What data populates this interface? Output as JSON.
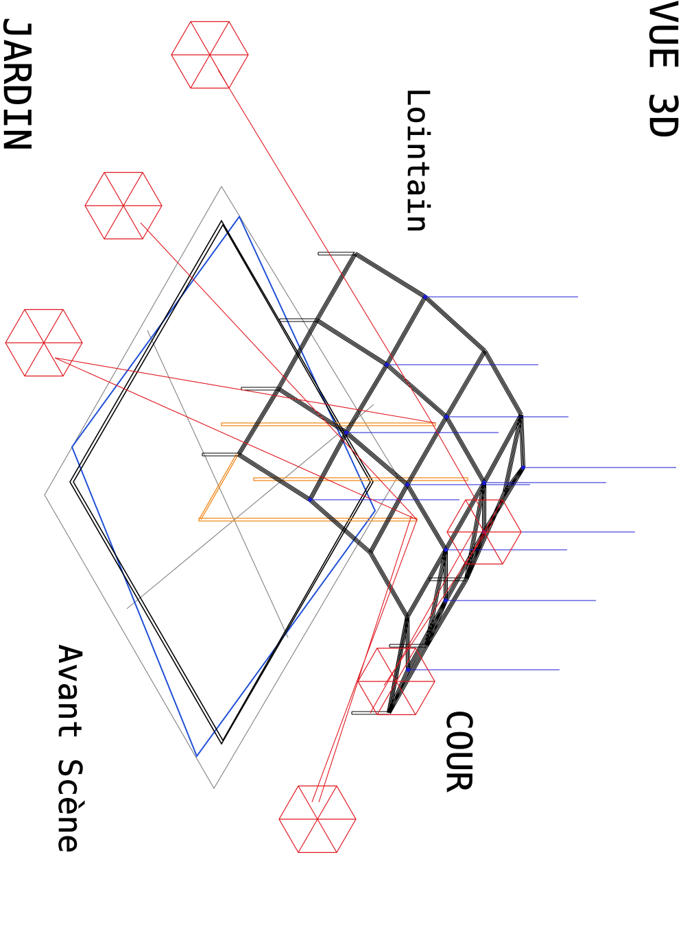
{
  "labels": {
    "view_title": "VUE 3D",
    "jardin": "JARDIN",
    "lointain": "Lointain",
    "avant_scene": "Avant Scène",
    "cour": "COUR"
  },
  "colors": {
    "truss": "#000000",
    "grid": "#808080",
    "deck_blue": "#1f4fd6",
    "pointer_blue": "#1a1ad6",
    "fixture_red": "#e0161e",
    "bar_orange": "#f08a1e"
  },
  "legend": {
    "fixture_symbol": "hexagon-fixture-icon",
    "truss_symbol": "truss-structure"
  }
}
